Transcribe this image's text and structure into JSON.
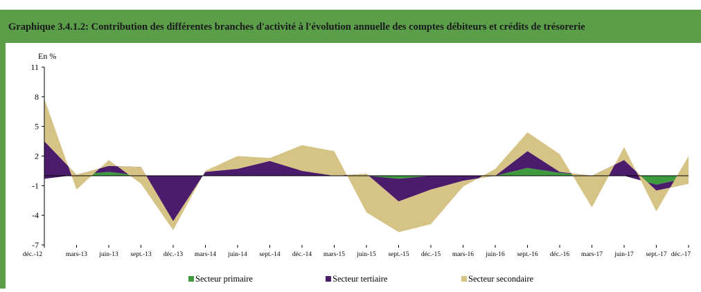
{
  "chart_data": {
    "type": "area",
    "title": "Graphique 3.4.1.2: Contribution des différentes branches d'activité à l'évolution annuelle des comptes débiteurs et crédits de trésorerie",
    "y_label": "En %",
    "categories": [
      "déc.-12",
      "mars-13",
      "juin-13",
      "sept.-13",
      "déc.-13",
      "mars-14",
      "juin-14",
      "sept.-14",
      "déc.-14",
      "mars-15",
      "juin-15",
      "sept.-15",
      "déc.-15",
      "mars-16",
      "juin-16",
      "sept.-16",
      "déc.-16",
      "mars-17",
      "juin-17",
      "sept.-17",
      "déc.-17"
    ],
    "series": [
      {
        "name": "Secteur primaire",
        "color": "#3e9a3e",
        "values": [
          -0.3,
          0.1,
          0.4,
          0,
          0,
          0,
          0,
          0,
          0,
          0,
          0,
          -0.3,
          0,
          0,
          0,
          0.8,
          0.3,
          0,
          0,
          -0.9,
          -0.2
        ]
      },
      {
        "name": "Secteur tertiaire",
        "color": "#4b1c6b",
        "values": [
          3.8,
          0,
          0.6,
          0.9,
          -4.6,
          0.4,
          0.7,
          1.5,
          0.5,
          0,
          0.2,
          -2.3,
          -1.4,
          -0.5,
          0,
          1.7,
          0.1,
          0,
          1.6,
          -0.6,
          -0.6
        ]
      },
      {
        "name": "Secteur secondaire",
        "color": "#d6c386",
        "values": [
          4.3,
          -1.5,
          0.6,
          -1.7,
          -0.9,
          0.1,
          1.3,
          0.3,
          2.6,
          2.5,
          -3.9,
          -3.1,
          -3.5,
          -0.6,
          0.7,
          1.9,
          1.8,
          -3.2,
          1.3,
          -2.1,
          2.8
        ]
      }
    ],
    "ylim": [
      -7,
      11
    ],
    "yticks": [
      -7,
      -4,
      -1,
      2,
      5,
      8,
      11
    ]
  }
}
